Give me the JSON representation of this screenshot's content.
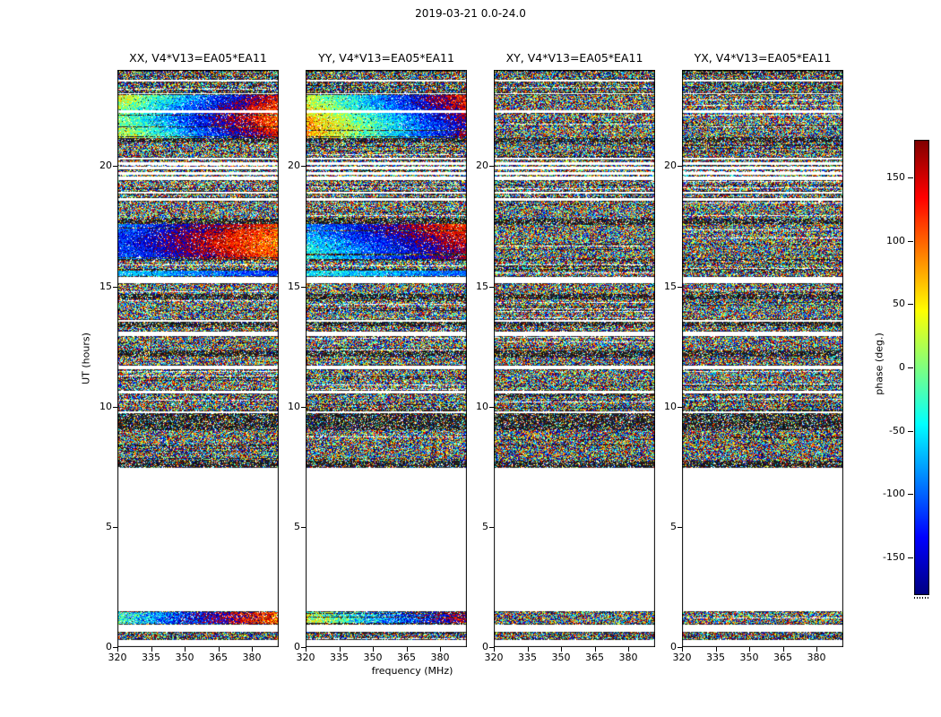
{
  "chart_data": {
    "type": "heatmap",
    "title": "2019-03-21 0.0-24.0",
    "xlabel": "frequency (MHz)",
    "ylabel": "UT (hours)",
    "panels": [
      {
        "pol": "XX",
        "title": "XX, V4*V13=EA05*EA11"
      },
      {
        "pol": "YY",
        "title": "YY, V4*V13=EA05*EA11"
      },
      {
        "pol": "XY",
        "title": "XY, V4*V13=EA05*EA11"
      },
      {
        "pol": "YX",
        "title": "YX, V4*V13=EA05*EA11"
      }
    ],
    "x_ticks": [
      320,
      335,
      350,
      365,
      380
    ],
    "x_range": [
      320,
      392
    ],
    "y_ticks": [
      0,
      5,
      10,
      15,
      20
    ],
    "y_range": [
      0,
      24
    ],
    "colorbar": {
      "label": "phase (deg.)",
      "ticks": [
        150,
        100,
        50,
        0,
        -50,
        -100,
        -150
      ],
      "range": [
        -180,
        180
      ],
      "colormap": "jet"
    },
    "coherent_phase_panels": [
      "XX",
      "YY"
    ],
    "time_bands": [
      {
        "y0": 0.28,
        "y1": 0.62,
        "style": "noise",
        "density": 0.97,
        "dark": 0.3
      },
      {
        "y0": 0.95,
        "y1": 1.5,
        "style": "smooth",
        "p0": -10,
        "dp": -230,
        "n": 70,
        "wob": 20
      },
      {
        "y0": 7.45,
        "y1": 7.72,
        "style": "dark"
      },
      {
        "y0": 7.72,
        "y1": 9.05,
        "style": "noise",
        "density": 0.95,
        "dark": 0.18
      },
      {
        "y0": 9.05,
        "y1": 9.72,
        "style": "dark"
      },
      {
        "y0": 9.8,
        "y1": 10.55,
        "style": "noise",
        "density": 0.95,
        "dark": 0.2
      },
      {
        "y0": 10.65,
        "y1": 11.55,
        "style": "noise",
        "density": 0.94,
        "dark": 0.15
      },
      {
        "y0": 11.7,
        "y1": 12.12,
        "style": "noise",
        "density": 0.94,
        "dark": 0.15
      },
      {
        "y0": 12.12,
        "y1": 12.3,
        "style": "dark"
      },
      {
        "y0": 12.3,
        "y1": 12.95,
        "style": "noise",
        "density": 0.94,
        "dark": 0.15
      },
      {
        "y0": 13.1,
        "y1": 13.38,
        "style": "noise",
        "density": 0.92,
        "dark": 0.2
      },
      {
        "y0": 13.38,
        "y1": 13.52,
        "style": "dark"
      },
      {
        "y0": 13.62,
        "y1": 14.5,
        "style": "noise",
        "density": 0.94,
        "dark": 0.15
      },
      {
        "y0": 14.5,
        "y1": 14.66,
        "style": "dark"
      },
      {
        "y0": 14.66,
        "y1": 15.12,
        "style": "noise",
        "density": 0.94,
        "dark": 0.15
      },
      {
        "y0": 15.38,
        "y1": 15.68,
        "style": "smooth",
        "p0": -70,
        "dp": -60,
        "n": 40,
        "wob": 10
      },
      {
        "y0": 15.68,
        "y1": 16.1,
        "style": "noise",
        "density": 0.93,
        "dark": 0.15
      },
      {
        "y0": 16.1,
        "y1": 17.62,
        "style": "smooth",
        "p0": -95,
        "dp": -156,
        "n": 45,
        "wob": 25
      },
      {
        "y0": 17.62,
        "y1": 17.78,
        "style": "dark"
      },
      {
        "y0": 17.78,
        "y1": 18.55,
        "style": "noise",
        "density": 0.94,
        "dark": 0.15
      },
      {
        "y0": 18.68,
        "y1": 18.85,
        "style": "noise",
        "density": 0.9,
        "dark": 0.2
      },
      {
        "y0": 18.95,
        "y1": 19.4,
        "style": "noise",
        "density": 0.92,
        "dark": 0.15
      },
      {
        "y0": 19.48,
        "y1": 20.28,
        "style": "rows",
        "period": 0.2,
        "duty": 0.45,
        "density": 0.92,
        "dark": 0.2
      },
      {
        "y0": 20.36,
        "y1": 21.02,
        "style": "noise",
        "density": 0.94,
        "dark": 0.15
      },
      {
        "y0": 21.02,
        "y1": 21.14,
        "style": "dark"
      },
      {
        "y0": 21.14,
        "y1": 22.98,
        "style": "smooth",
        "p0": 30,
        "dp": -260,
        "n": 50,
        "wob": 30,
        "gaps": [
          22.28
        ]
      },
      {
        "y0": 23.04,
        "y1": 23.5,
        "style": "noise",
        "density": 0.95,
        "dark": 0.3
      },
      {
        "y0": 23.58,
        "y1": 23.97,
        "style": "noise",
        "density": 0.95,
        "dark": 0.25
      }
    ]
  }
}
